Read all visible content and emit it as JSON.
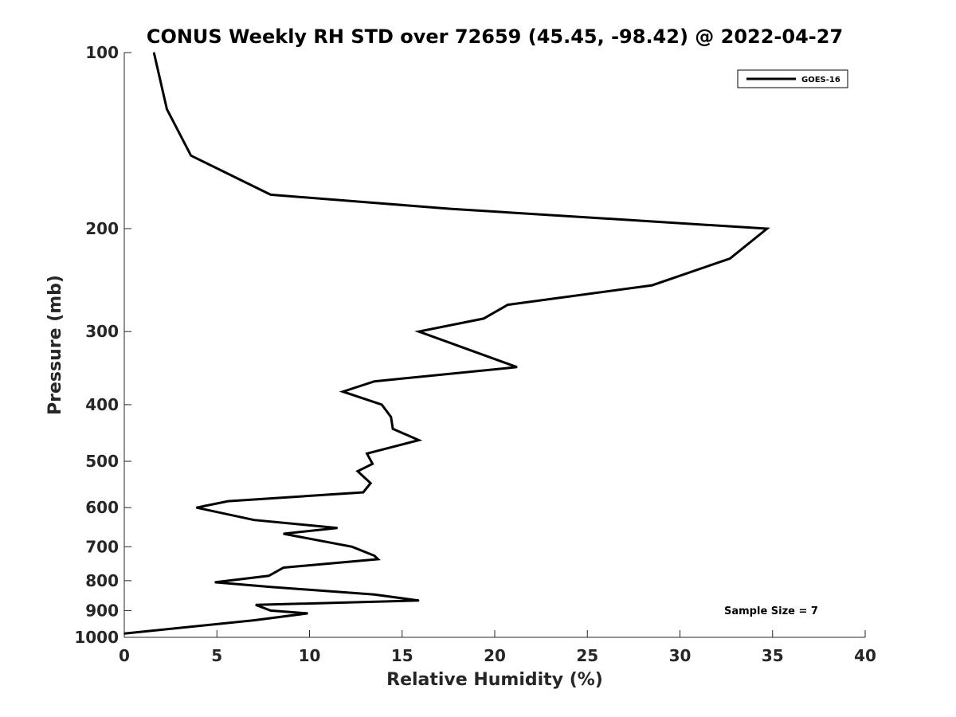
{
  "chart_data": {
    "type": "line",
    "title": "CONUS Weekly RH STD over 72659 (45.45, -98.42) @ 2022-04-27",
    "xlabel": "Relative Humidity (%)",
    "ylabel": "Pressure (mb)",
    "xlim": [
      0,
      40
    ],
    "ylim": [
      100,
      1000
    ],
    "yscale": "log",
    "y_reversed": true,
    "grid": false,
    "legend_position": "top-right",
    "x_ticks": [
      0,
      5,
      10,
      15,
      20,
      25,
      30,
      35,
      40
    ],
    "x_tick_labels": [
      "0",
      "5",
      "10",
      "15",
      "20",
      "25",
      "30",
      "35",
      "40"
    ],
    "y_ticks": [
      100,
      200,
      300,
      400,
      500,
      600,
      700,
      800,
      900,
      1000
    ],
    "y_tick_labels": [
      "100",
      "200",
      "300",
      "400",
      "500",
      "600",
      "700",
      "800",
      "900",
      "1000"
    ],
    "series": [
      {
        "name": "GOES-16",
        "color": "#000000",
        "points": [
          [
            1.6,
            100
          ],
          [
            2.3,
            125
          ],
          [
            3.6,
            150
          ],
          [
            7.9,
            175
          ],
          [
            17.6,
            185
          ],
          [
            34.7,
            200
          ],
          [
            32.7,
            225
          ],
          [
            28.5,
            250
          ],
          [
            20.7,
            270
          ],
          [
            19.4,
            285
          ],
          [
            15.9,
            300
          ],
          [
            21.2,
            345
          ],
          [
            13.5,
            365
          ],
          [
            11.8,
            380
          ],
          [
            13.9,
            400
          ],
          [
            14.4,
            420
          ],
          [
            14.5,
            440
          ],
          [
            15.9,
            460
          ],
          [
            13.1,
            485
          ],
          [
            13.4,
            505
          ],
          [
            12.6,
            520
          ],
          [
            13.3,
            545
          ],
          [
            12.9,
            565
          ],
          [
            5.6,
            585
          ],
          [
            3.9,
            600
          ],
          [
            7.0,
            630
          ],
          [
            11.5,
            650
          ],
          [
            8.6,
            665
          ],
          [
            12.3,
            700
          ],
          [
            13.5,
            725
          ],
          [
            13.7,
            735
          ],
          [
            8.6,
            760
          ],
          [
            7.8,
            785
          ],
          [
            4.9,
            805
          ],
          [
            7.9,
            820
          ],
          [
            13.5,
            845
          ],
          [
            15.9,
            865
          ],
          [
            7.1,
            880
          ],
          [
            7.9,
            900
          ],
          [
            9.9,
            910
          ],
          [
            7.0,
            935
          ],
          [
            0.0,
            985
          ]
        ]
      }
    ],
    "annotations": [
      "Sample Size = 7"
    ]
  }
}
